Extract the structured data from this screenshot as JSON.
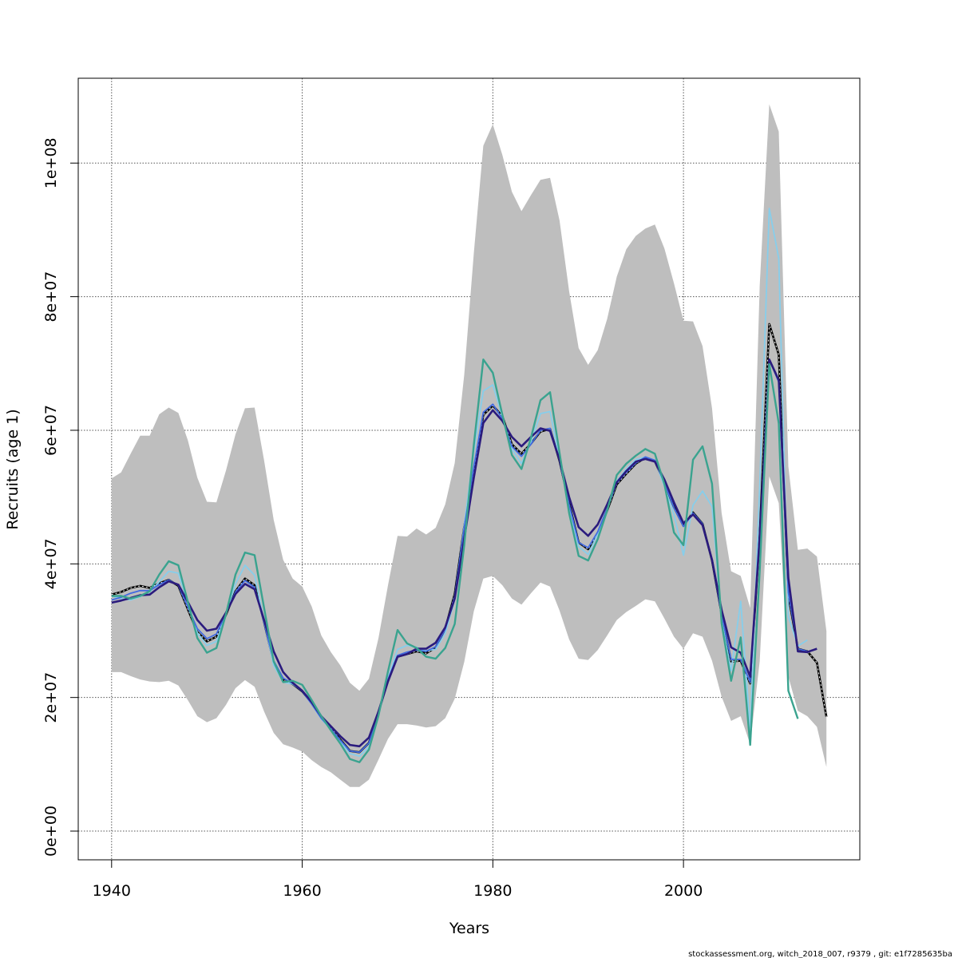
{
  "chart_data": {
    "type": "line",
    "xlabel": "Years",
    "ylabel": "Recruits (age 1)",
    "xlim": [
      1936.5,
      2018.5
    ],
    "ylim": [
      -4300000,
      112700000
    ],
    "x_ticks": [
      1940,
      1960,
      1980,
      2000
    ],
    "x_tick_labels": [
      "1940",
      "1960",
      "1980",
      "2000"
    ],
    "y_ticks": [
      0,
      20000000,
      40000000,
      60000000,
      80000000,
      100000000
    ],
    "y_tick_labels": [
      "0e+00",
      "2e+07",
      "4e+07",
      "6e+07",
      "8e+07",
      "1e+08"
    ],
    "grid": true,
    "footer": "stockassessment.org, witch_2018_007, r9379 , git: e1f7285635ba",
    "colors": {
      "band": "#bebebe",
      "black_dashed": "#000000",
      "light_blue": "#87ceeb",
      "blue": "#4169e1",
      "dark_blue": "#2b1b7e",
      "teal": "#3aa38f"
    },
    "band": {
      "x": [
        1940,
        1941,
        1942,
        1943,
        1944,
        1945,
        1946,
        1947,
        1948,
        1949,
        1950,
        1951,
        1952,
        1953,
        1954,
        1955,
        1956,
        1957,
        1958,
        1959,
        1960,
        1961,
        1962,
        1963,
        1964,
        1965,
        1966,
        1967,
        1968,
        1969,
        1970,
        1971,
        1972,
        1973,
        1974,
        1975,
        1976,
        1977,
        1978,
        1979,
        1980,
        1981,
        1982,
        1983,
        1984,
        1985,
        1986,
        1987,
        1988,
        1989,
        1990,
        1991,
        1992,
        1993,
        1994,
        1995,
        1996,
        1997,
        1998,
        1999,
        2000,
        2001,
        2002,
        2003,
        2004,
        2005,
        2006,
        2007,
        2008,
        2009,
        2010,
        2011,
        2012,
        2013,
        2014,
        2015
      ],
      "upper": [
        52.8,
        53.7,
        56.5,
        59.2,
        59.2,
        62.4,
        63.4,
        62.6,
        58.5,
        52.9,
        49.3,
        49.2,
        54.0,
        59.4,
        63.3,
        63.4,
        55.5,
        46.6,
        40.6,
        37.8,
        36.6,
        33.6,
        29.3,
        26.8,
        24.8,
        22.2,
        21.0,
        22.8,
        28.9,
        36.8,
        44.2,
        44.1,
        45.3,
        44.4,
        45.4,
        48.9,
        55.1,
        68.3,
        86.5,
        102.6,
        105.8,
        101.2,
        95.7,
        92.8,
        95.2,
        97.5,
        97.8,
        91.4,
        80.8,
        72.3,
        69.8,
        72.0,
        76.7,
        83.0,
        87.1,
        89.1,
        90.2,
        90.8,
        87.2,
        82.0,
        76.4,
        76.3,
        72.6,
        63.3,
        47.6,
        38.9,
        38.2,
        33.4,
        81.6,
        108.8,
        104.7,
        54.6,
        42.1,
        42.3,
        41.1,
        29.9
      ],
      "lower": [
        23.8,
        23.8,
        23.2,
        22.7,
        22.4,
        22.3,
        22.5,
        21.8,
        19.6,
        17.2,
        16.3,
        16.9,
        18.9,
        21.4,
        22.6,
        21.6,
        17.9,
        14.7,
        13.0,
        12.5,
        11.9,
        10.6,
        9.6,
        8.8,
        7.7,
        6.6,
        6.6,
        7.7,
        10.7,
        13.8,
        16.0,
        16.0,
        15.8,
        15.5,
        15.7,
        16.9,
        19.8,
        25.3,
        32.9,
        37.8,
        38.2,
        36.8,
        34.8,
        33.9,
        35.6,
        37.2,
        36.6,
        33.0,
        28.7,
        25.8,
        25.6,
        27.1,
        29.3,
        31.6,
        32.8,
        33.7,
        34.7,
        34.4,
        31.8,
        29.1,
        27.3,
        29.6,
        29.1,
        25.5,
        20.1,
        16.5,
        17.2,
        13.0,
        25.4,
        53.1,
        49.1,
        23.1,
        18.0,
        17.2,
        15.6,
        9.6
      ]
    },
    "series": [
      {
        "color": "#000000",
        "style": "dashed",
        "x": [
          1940,
          1941,
          1942,
          1943,
          1944,
          1945,
          1946,
          1947,
          1948,
          1949,
          1950,
          1951,
          1952,
          1953,
          1954,
          1955,
          1956,
          1957,
          1958,
          1959,
          1960,
          1961,
          1962,
          1963,
          1964,
          1965,
          1966,
          1967,
          1968,
          1969,
          1970,
          1971,
          1972,
          1973,
          1974,
          1975,
          1976,
          1977,
          1978,
          1979,
          1980,
          1981,
          1982,
          1983,
          1984,
          1985,
          1986,
          1987,
          1988,
          1989,
          1990,
          1991,
          1992,
          1993,
          1994,
          1995,
          1996,
          1997,
          1998,
          1999,
          2000,
          2001,
          2002,
          2003,
          2004,
          2005,
          2006,
          2007,
          2008,
          2009,
          2010,
          2011,
          2012,
          2013,
          2014,
          2015
        ],
        "values": [
          35.4,
          35.8,
          36.4,
          36.7,
          36.4,
          37.1,
          37.6,
          36.7,
          33.2,
          29.8,
          28.4,
          29.1,
          32.4,
          35.9,
          37.8,
          36.8,
          31.3,
          25.2,
          22.6,
          22.0,
          20.9,
          19.2,
          17.1,
          15.5,
          13.7,
          12.0,
          11.8,
          13.2,
          17.7,
          22.8,
          26.1,
          26.5,
          26.9,
          26.6,
          27.5,
          30.3,
          35.5,
          45.6,
          53.8,
          62.3,
          63.7,
          62.1,
          57.9,
          56.5,
          58.0,
          59.8,
          60.2,
          55.4,
          49.1,
          43.2,
          42.2,
          44.6,
          48.0,
          51.9,
          53.5,
          55.0,
          55.9,
          55.4,
          52.0,
          48.5,
          45.7,
          47.7,
          46.0,
          40.5,
          32.5,
          25.4,
          25.5,
          22.1,
          44.2,
          75.9,
          71.3,
          35.3,
          27.3,
          26.9,
          25.2,
          17.1
        ]
      },
      {
        "color": "#87ceeb",
        "style": "solid",
        "x": [
          1940,
          1941,
          1942,
          1943,
          1944,
          1945,
          1946,
          1947,
          1948,
          1949,
          1950,
          1951,
          1952,
          1953,
          1954,
          1955,
          1956,
          1957,
          1958,
          1959,
          1960,
          1961,
          1962,
          1963,
          1964,
          1965,
          1966,
          1967,
          1968,
          1969,
          1970,
          1971,
          1972,
          1973,
          1974,
          1975,
          1976,
          1977,
          1978,
          1979,
          1980,
          1981,
          1982,
          1983,
          1984,
          1985,
          1986,
          1987,
          1988,
          1989,
          1990,
          1991,
          1992,
          1993,
          1994,
          1995,
          1996,
          1997,
          1998,
          1999,
          2000,
          2001,
          2002,
          2003,
          2004,
          2005,
          2006,
          2007,
          2008,
          2009,
          2010,
          2011,
          2012,
          2013
        ],
        "values": [
          35.2,
          34.8,
          34.6,
          35.1,
          35.8,
          37.3,
          38.9,
          38.6,
          34.2,
          29.7,
          27.8,
          28.4,
          32.6,
          37.0,
          39.8,
          38.3,
          31.4,
          24.8,
          22.3,
          22.0,
          21.0,
          19.0,
          16.8,
          15.2,
          13.4,
          11.6,
          11.2,
          12.6,
          17.4,
          22.9,
          27.2,
          27.8,
          27.5,
          27.0,
          27.2,
          29.6,
          34.6,
          45.8,
          56.9,
          65.9,
          66.8,
          62.0,
          57.2,
          55.0,
          58.2,
          62.5,
          62.8,
          55.7,
          48.5,
          42.6,
          41.4,
          44.5,
          48.2,
          52.4,
          54.2,
          55.6,
          56.0,
          55.5,
          51.6,
          47.4,
          41.3,
          48.8,
          50.9,
          48.6,
          31.6,
          24.0,
          34.4,
          15.1,
          51.6,
          93.2,
          85.7,
          32.1,
          27.7,
          28.6
        ]
      },
      {
        "color": "#4169e1",
        "style": "solid",
        "x": [
          1940,
          1941,
          1942,
          1943,
          1944,
          1945,
          1946,
          1947,
          1948,
          1949,
          1950,
          1951,
          1952,
          1953,
          1954,
          1955,
          1956,
          1957,
          1958,
          1959,
          1960,
          1961,
          1962,
          1963,
          1964,
          1965,
          1966,
          1967,
          1968,
          1969,
          1970,
          1971,
          1972,
          1973,
          1974,
          1975,
          1976,
          1977,
          1978,
          1979,
          1980,
          1981,
          1982,
          1983,
          1984,
          1985,
          1986,
          1987,
          1988,
          1989,
          1990,
          1991,
          1992,
          1993,
          1994,
          1995,
          1996,
          1997,
          1998,
          1999,
          2000,
          2001,
          2002,
          2003,
          2004,
          2005,
          2006,
          2007,
          2008,
          2009,
          2010,
          2011,
          2012,
          2013
        ],
        "values": [
          34.6,
          35.0,
          35.6,
          36.0,
          36.0,
          36.9,
          37.6,
          36.8,
          33.5,
          30.3,
          28.8,
          29.5,
          32.6,
          35.8,
          37.5,
          36.5,
          31.2,
          25.5,
          22.9,
          22.1,
          20.9,
          19.0,
          16.9,
          15.3,
          13.6,
          12.0,
          11.8,
          13.2,
          17.6,
          22.7,
          26.3,
          26.8,
          27.1,
          26.9,
          27.6,
          30.2,
          35.2,
          45.4,
          54.5,
          62.7,
          63.9,
          61.7,
          57.6,
          56.1,
          57.9,
          60.0,
          60.3,
          55.4,
          48.9,
          43.2,
          42.4,
          44.8,
          48.3,
          52.1,
          53.7,
          55.1,
          56.0,
          55.5,
          52.1,
          48.4,
          45.6,
          47.6,
          46.0,
          40.5,
          32.4,
          25.7,
          25.7,
          22.3,
          44.4,
          70.6,
          67.2,
          35.7,
          27.3,
          26.9
        ]
      },
      {
        "color": "#2b1b7e",
        "style": "solid",
        "x": [
          1940,
          1941,
          1942,
          1943,
          1944,
          1945,
          1946,
          1947,
          1948,
          1949,
          1950,
          1951,
          1952,
          1953,
          1954,
          1955,
          1956,
          1957,
          1958,
          1959,
          1960,
          1961,
          1962,
          1963,
          1964,
          1965,
          1966,
          1967,
          1968,
          1969,
          1970,
          1971,
          1972,
          1973,
          1974,
          1975,
          1976,
          1977,
          1978,
          1979,
          1980,
          1981,
          1982,
          1983,
          1984,
          1985,
          1986,
          1987,
          1988,
          1989,
          1990,
          1991,
          1992,
          1993,
          1994,
          1995,
          1996,
          1997,
          1998,
          1999,
          2000,
          2001,
          2002,
          2003,
          2004,
          2005,
          2006,
          2007,
          2008,
          2009,
          2010,
          2011,
          2012,
          2013,
          2014
        ],
        "values": [
          34.2,
          34.5,
          34.9,
          35.3,
          35.4,
          36.5,
          37.4,
          36.9,
          34.3,
          31.6,
          30.0,
          30.3,
          32.7,
          35.5,
          37.0,
          36.2,
          31.6,
          26.9,
          23.8,
          22.2,
          21.0,
          19.3,
          17.2,
          15.7,
          14.2,
          12.9,
          12.7,
          14.0,
          17.9,
          22.4,
          26.1,
          26.5,
          27.3,
          27.3,
          28.2,
          30.5,
          34.8,
          43.8,
          52.9,
          61.1,
          63.0,
          61.4,
          59.0,
          57.6,
          59.0,
          60.3,
          59.9,
          55.6,
          50.0,
          45.5,
          44.2,
          45.9,
          48.9,
          52.2,
          53.9,
          55.3,
          55.7,
          55.3,
          52.6,
          49.2,
          46.1,
          47.4,
          45.8,
          40.6,
          33.1,
          27.5,
          26.7,
          23.1,
          44.0,
          70.6,
          67.5,
          37.9,
          26.9,
          26.8,
          27.3
        ]
      },
      {
        "color": "#3aa38f",
        "style": "solid",
        "x": [
          1940,
          1941,
          1942,
          1943,
          1944,
          1945,
          1946,
          1947,
          1948,
          1949,
          1950,
          1951,
          1952,
          1953,
          1954,
          1955,
          1956,
          1957,
          1958,
          1959,
          1960,
          1961,
          1962,
          1963,
          1964,
          1965,
          1966,
          1967,
          1968,
          1969,
          1970,
          1971,
          1972,
          1973,
          1974,
          1975,
          1976,
          1977,
          1978,
          1979,
          1980,
          1981,
          1982,
          1983,
          1984,
          1985,
          1986,
          1987,
          1988,
          1989,
          1990,
          1991,
          1992,
          1993,
          1994,
          1995,
          1996,
          1997,
          1998,
          1999,
          2000,
          2001,
          2002,
          2003,
          2004,
          2005,
          2006,
          2007,
          2008,
          2009,
          2010,
          2011,
          2012
        ],
        "values": [
          35.2,
          35.2,
          34.8,
          35.2,
          35.9,
          38.4,
          40.4,
          39.8,
          34.3,
          28.9,
          26.7,
          27.4,
          32.5,
          38.4,
          41.7,
          41.3,
          33.4,
          25.4,
          22.3,
          22.5,
          21.9,
          19.6,
          17.2,
          15.1,
          13.1,
          10.8,
          10.3,
          12.2,
          17.3,
          23.9,
          30.1,
          28.1,
          27.4,
          26.1,
          25.8,
          27.4,
          31.0,
          42.8,
          57.8,
          70.6,
          68.6,
          62.3,
          56.3,
          54.2,
          58.9,
          64.5,
          65.7,
          56.6,
          47.6,
          41.2,
          40.5,
          43.7,
          48.0,
          53.3,
          55.0,
          56.2,
          57.2,
          56.5,
          51.9,
          44.7,
          42.8,
          55.6,
          57.6,
          52.0,
          31.1,
          22.5,
          29.0,
          12.9,
          38.9,
          69.9,
          61.0,
          21.0,
          16.8
        ]
      }
    ]
  }
}
